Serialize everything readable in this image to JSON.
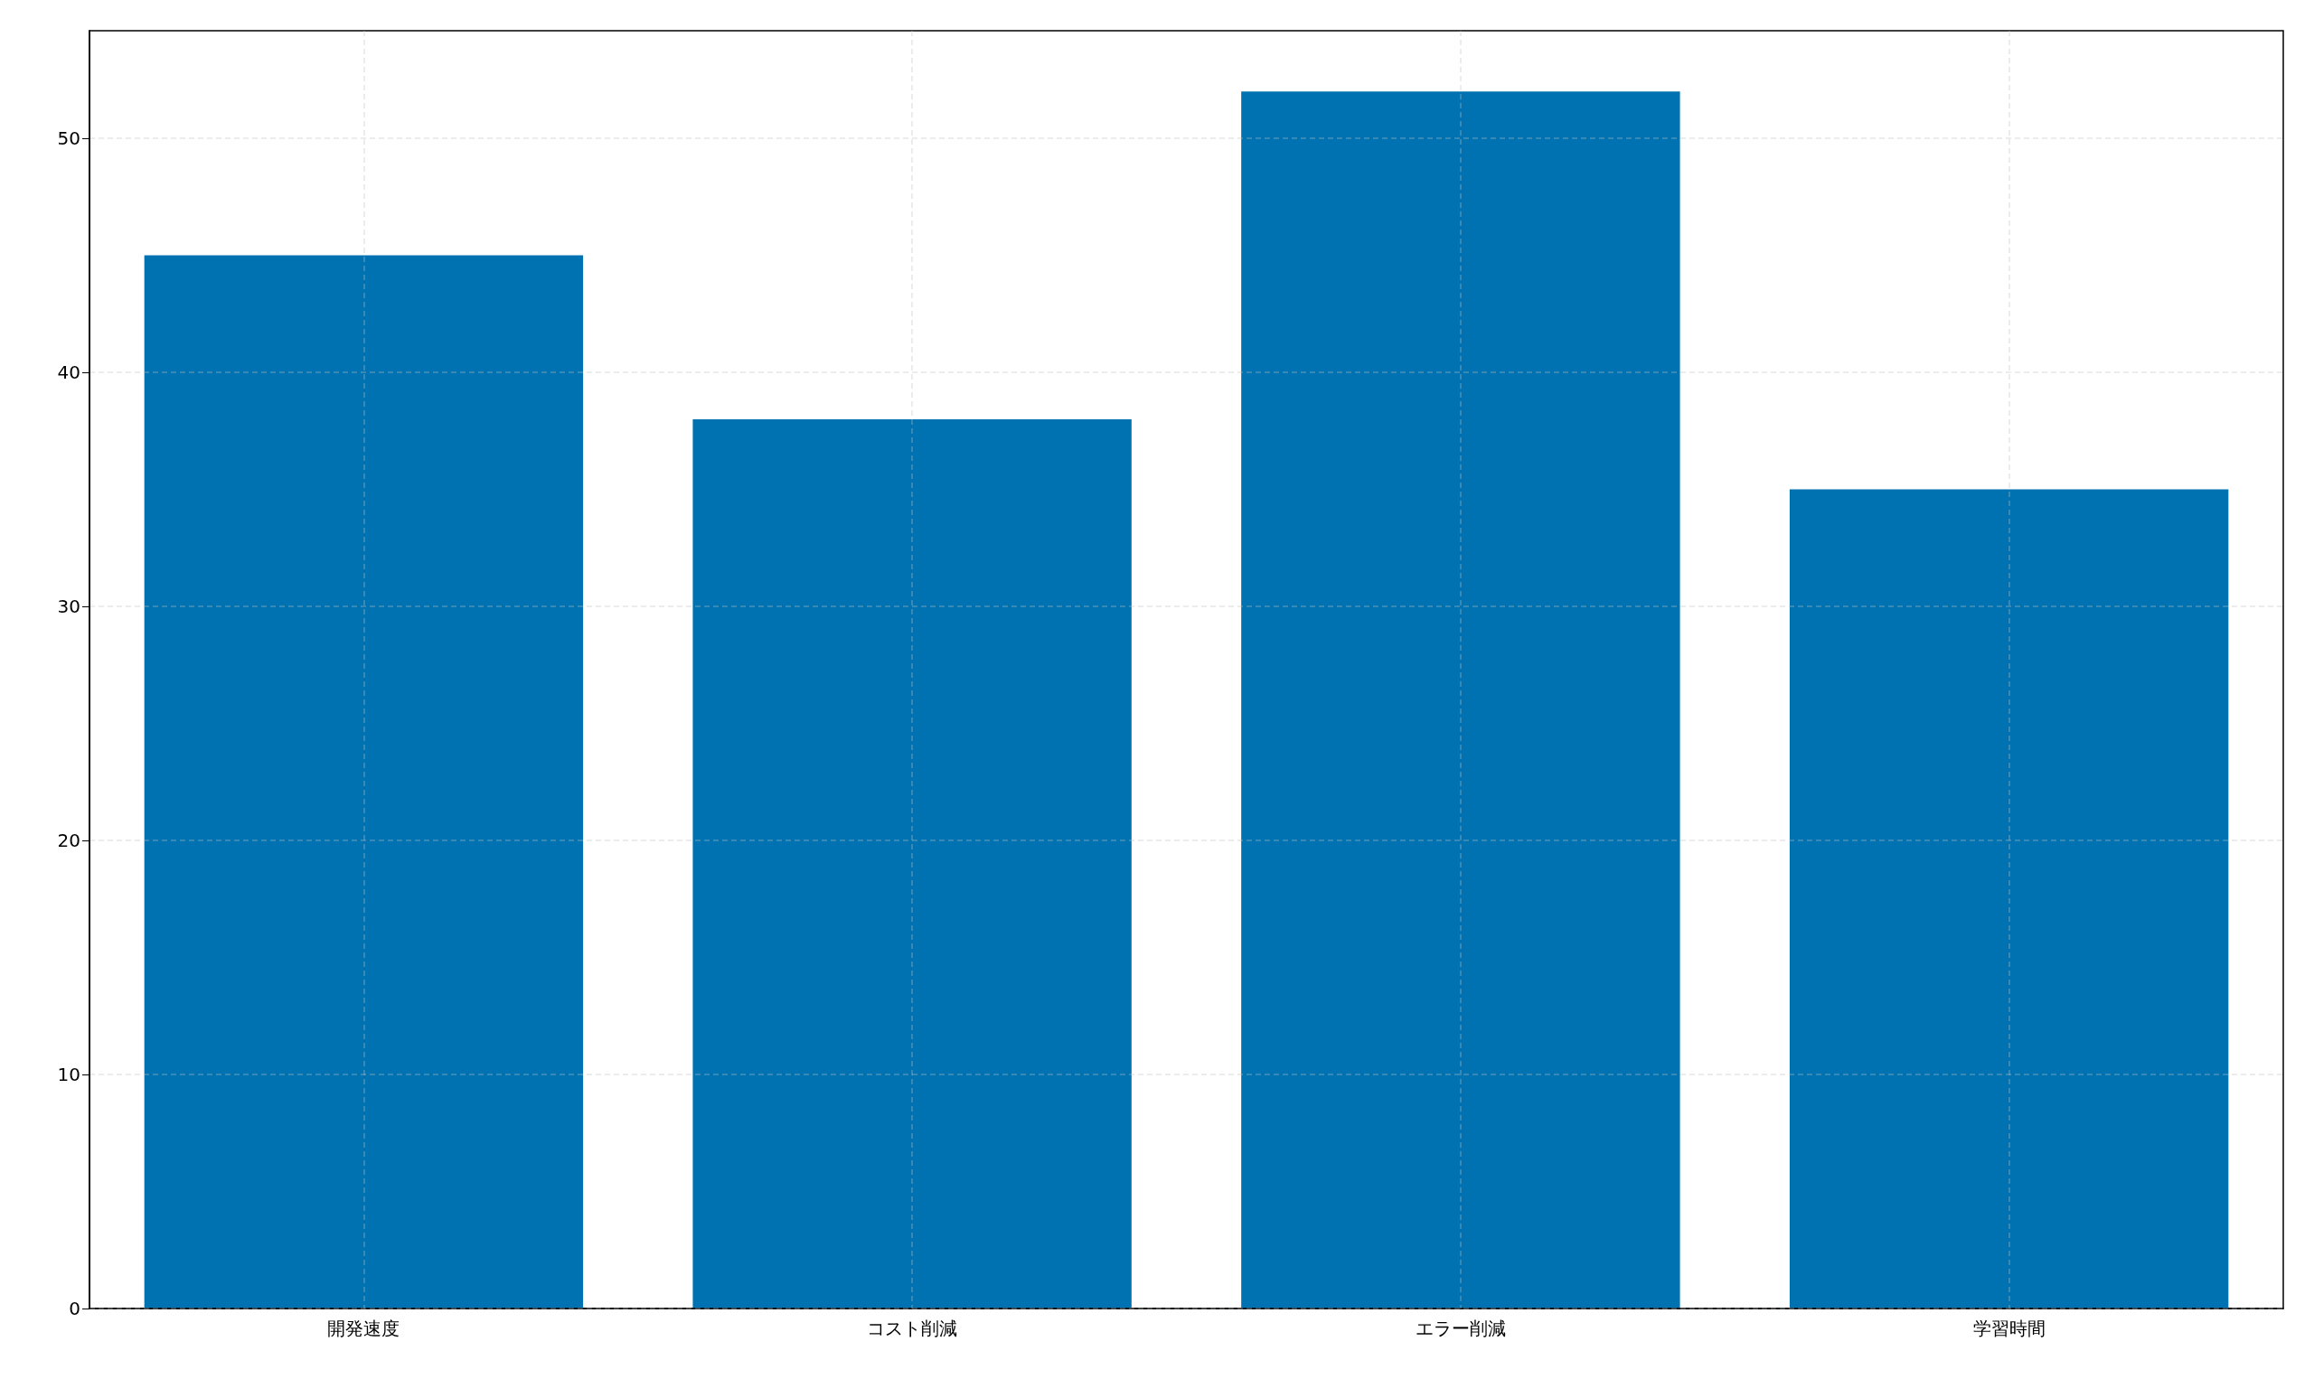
{
  "chart_data": {
    "type": "bar",
    "categories": [
      "開発速度",
      "コスト削減",
      "エラー削減",
      "学習時間"
    ],
    "values": [
      45,
      38,
      52,
      35
    ],
    "color": "#0072b2",
    "ylim": [
      0,
      54.6
    ],
    "yticks": [
      0,
      10,
      20,
      30,
      40,
      50
    ],
    "grid": true
  }
}
